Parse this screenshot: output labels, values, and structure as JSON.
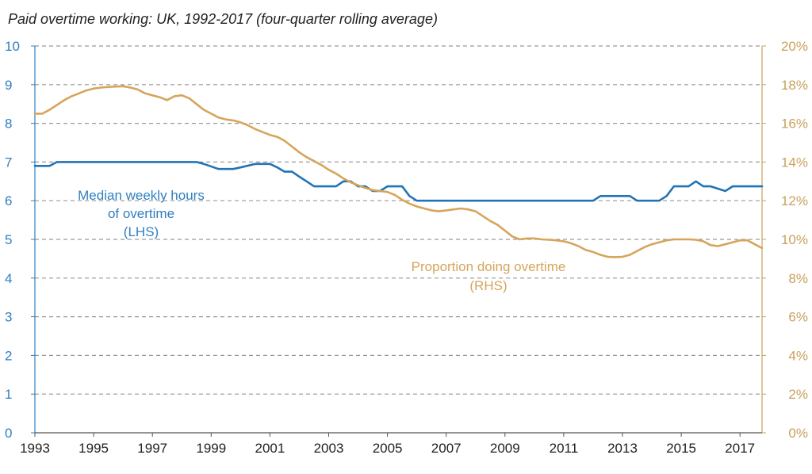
{
  "chart_data": {
    "type": "line",
    "title": "Paid overtime working: UK, 1992-2017 (four-quarter rolling average)",
    "colors": {
      "lhs": "#2274b5",
      "rhs": "#d6a55a",
      "grid": "#999999",
      "axis_left": "#2f7fc1",
      "axis_right": "#c9a15c"
    },
    "grid": true,
    "x_range": [
      1993.0,
      2017.75
    ],
    "x_tick_labels": [
      "1993",
      "1995",
      "1997",
      "1999",
      "2001",
      "2003",
      "2005",
      "2007",
      "2009",
      "2011",
      "2013",
      "2015",
      "2017"
    ],
    "y_left": {
      "range": [
        0,
        10
      ],
      "tick_labels": [
        "0",
        "1",
        "2",
        "3",
        "4",
        "5",
        "6",
        "7",
        "8",
        "9",
        "10"
      ]
    },
    "y_right": {
      "range": [
        0,
        20
      ],
      "tick_labels": [
        "0%",
        "2%",
        "4%",
        "6%",
        "8%",
        "10%",
        "12%",
        "14%",
        "16%",
        "18%",
        "20%"
      ]
    },
    "series": [
      {
        "name": "Median weekly hours of overtime (LHS)",
        "axis": "left",
        "x": [
          1993.0,
          1993.5,
          1993.75,
          1994.0,
          1998.5,
          1998.75,
          1999.25,
          1999.5,
          1999.75,
          2000.0,
          2000.5,
          2001.0,
          2001.25,
          2001.5,
          2001.75,
          2002.0,
          2002.25,
          2002.5,
          2003.0,
          2003.25,
          2003.5,
          2003.75,
          2004.0,
          2004.25,
          2004.5,
          2004.75,
          2005.0,
          2005.5,
          2005.75,
          2006.0,
          2012.0,
          2012.25,
          2012.5,
          2013.25,
          2013.5,
          2014.25,
          2014.5,
          2014.75,
          2015.25,
          2015.5,
          2015.75,
          2016.0,
          2016.5,
          2016.75,
          2017.0,
          2017.75
        ],
        "values": [
          6.9,
          6.9,
          7.0,
          7.0,
          7.0,
          6.95,
          6.82,
          6.82,
          6.82,
          6.86,
          6.95,
          6.95,
          6.86,
          6.75,
          6.75,
          6.62,
          6.5,
          6.37,
          6.37,
          6.37,
          6.5,
          6.5,
          6.37,
          6.37,
          6.25,
          6.25,
          6.37,
          6.37,
          6.12,
          6.0,
          6.0,
          6.12,
          6.12,
          6.12,
          6.0,
          6.0,
          6.12,
          6.37,
          6.37,
          6.5,
          6.37,
          6.37,
          6.25,
          6.37,
          6.37,
          6.37
        ]
      },
      {
        "name": "Proportion doing overtime (RHS)",
        "axis": "right",
        "x": [
          1993.0,
          1993.25,
          1993.5,
          1993.75,
          1994.0,
          1994.25,
          1994.5,
          1994.75,
          1995.0,
          1995.25,
          1995.5,
          1995.75,
          1996.0,
          1996.25,
          1996.5,
          1996.75,
          1997.0,
          1997.25,
          1997.5,
          1997.75,
          1998.0,
          1998.25,
          1998.5,
          1998.75,
          1999.0,
          1999.25,
          1999.5,
          1999.75,
          2000.0,
          2000.25,
          2000.5,
          2000.75,
          2001.0,
          2001.25,
          2001.5,
          2001.75,
          2002.0,
          2002.25,
          2002.5,
          2002.75,
          2003.0,
          2003.25,
          2003.5,
          2003.75,
          2004.0,
          2004.25,
          2004.5,
          2004.75,
          2005.0,
          2005.25,
          2005.5,
          2005.75,
          2006.0,
          2006.25,
          2006.5,
          2006.75,
          2007.0,
          2007.25,
          2007.5,
          2007.75,
          2008.0,
          2008.25,
          2008.5,
          2008.75,
          2009.0,
          2009.25,
          2009.5,
          2009.75,
          2010.0,
          2010.25,
          2010.5,
          2010.75,
          2011.0,
          2011.25,
          2011.5,
          2011.75,
          2012.0,
          2012.25,
          2012.5,
          2012.75,
          2013.0,
          2013.25,
          2013.5,
          2013.75,
          2014.0,
          2014.25,
          2014.5,
          2014.75,
          2015.0,
          2015.25,
          2015.5,
          2015.75,
          2016.0,
          2016.25,
          2016.5,
          2016.75,
          2017.0,
          2017.25,
          2017.5,
          2017.75
        ],
        "values": [
          16.5,
          16.5,
          16.7,
          16.95,
          17.2,
          17.4,
          17.55,
          17.7,
          17.8,
          17.85,
          17.88,
          17.9,
          17.92,
          17.85,
          17.75,
          17.55,
          17.45,
          17.35,
          17.2,
          17.4,
          17.45,
          17.3,
          17.0,
          16.7,
          16.5,
          16.3,
          16.2,
          16.15,
          16.05,
          15.9,
          15.7,
          15.55,
          15.4,
          15.3,
          15.1,
          14.8,
          14.5,
          14.25,
          14.05,
          13.85,
          13.6,
          13.4,
          13.15,
          12.95,
          12.8,
          12.65,
          12.55,
          12.5,
          12.45,
          12.3,
          12.05,
          11.85,
          11.7,
          11.6,
          11.5,
          11.45,
          11.5,
          11.55,
          11.6,
          11.55,
          11.45,
          11.2,
          10.95,
          10.75,
          10.45,
          10.15,
          10.0,
          10.05,
          10.05,
          10.0,
          9.98,
          9.95,
          9.9,
          9.8,
          9.65,
          9.45,
          9.35,
          9.2,
          9.1,
          9.08,
          9.1,
          9.2,
          9.4,
          9.6,
          9.75,
          9.85,
          9.95,
          10.0,
          10.0,
          10.0,
          9.98,
          9.9,
          9.7,
          9.65,
          9.75,
          9.85,
          9.95,
          9.95,
          9.75,
          9.55
        ]
      }
    ],
    "annotations": {
      "lhs_label": [
        "Median weekly hours",
        "of overtime",
        "(LHS)"
      ],
      "rhs_label": [
        "Proportion doing overtime",
        "(RHS)"
      ]
    }
  }
}
